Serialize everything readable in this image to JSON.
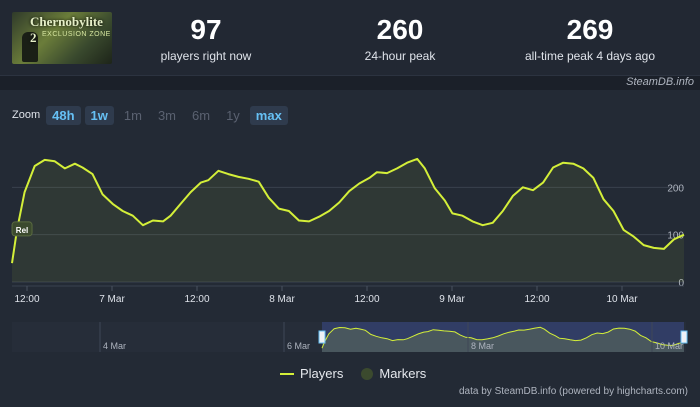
{
  "header": {
    "thumbnail_text": "Chernobylite 2",
    "thumbnail_sub": "EXCLUSION ZONE",
    "stats": [
      {
        "value": "97",
        "label": "players right now"
      },
      {
        "value": "260",
        "label": "24-hour peak"
      },
      {
        "value": "269",
        "label": "all-time peak 4 days ago"
      }
    ],
    "credit": "SteamDB.info"
  },
  "zoom": {
    "label": "Zoom",
    "buttons": [
      {
        "label": "48h",
        "state": "active"
      },
      {
        "label": "1w",
        "state": "active"
      },
      {
        "label": "1m",
        "state": "disabled"
      },
      {
        "label": "3m",
        "state": "disabled"
      },
      {
        "label": "6m",
        "state": "disabled"
      },
      {
        "label": "1y",
        "state": "disabled"
      },
      {
        "label": "max",
        "state": "active"
      }
    ]
  },
  "chart_data": {
    "type": "area",
    "series": [
      {
        "name": "Players",
        "color": "#d4ef39"
      }
    ],
    "ylim": [
      0,
      300
    ],
    "yticks": [
      0,
      100,
      200
    ],
    "xticks": [
      "12:00",
      "7 Mar",
      "12:00",
      "8 Mar",
      "12:00",
      "9 Mar",
      "12:00",
      "10 Mar"
    ],
    "points": [
      [
        0,
        40
      ],
      [
        2,
        110
      ],
      [
        5,
        190
      ],
      [
        9,
        245
      ],
      [
        13,
        258
      ],
      [
        17,
        255
      ],
      [
        21,
        240
      ],
      [
        25,
        250
      ],
      [
        28,
        242
      ],
      [
        32,
        228
      ],
      [
        36,
        185
      ],
      [
        40,
        165
      ],
      [
        44,
        150
      ],
      [
        48,
        140
      ],
      [
        52,
        120
      ],
      [
        56,
        130
      ],
      [
        60,
        128
      ],
      [
        63,
        140
      ],
      [
        67,
        165
      ],
      [
        71,
        190
      ],
      [
        75,
        210
      ],
      [
        78,
        215
      ],
      [
        82,
        235
      ],
      [
        86,
        228
      ],
      [
        90,
        222
      ],
      [
        94,
        218
      ],
      [
        98,
        212
      ],
      [
        102,
        178
      ],
      [
        106,
        155
      ],
      [
        110,
        150
      ],
      [
        114,
        130
      ],
      [
        118,
        128
      ],
      [
        122,
        138
      ],
      [
        126,
        150
      ],
      [
        130,
        168
      ],
      [
        134,
        192
      ],
      [
        138,
        208
      ],
      [
        142,
        220
      ],
      [
        145,
        232
      ],
      [
        149,
        230
      ],
      [
        153,
        240
      ],
      [
        157,
        252
      ],
      [
        161,
        260
      ],
      [
        164,
        240
      ],
      [
        168,
        198
      ],
      [
        172,
        172
      ],
      [
        175,
        145
      ],
      [
        179,
        140
      ],
      [
        183,
        128
      ],
      [
        187,
        120
      ],
      [
        191,
        125
      ],
      [
        195,
        150
      ],
      [
        199,
        182
      ],
      [
        203,
        200
      ],
      [
        207,
        194
      ],
      [
        211,
        210
      ],
      [
        215,
        242
      ],
      [
        219,
        252
      ],
      [
        223,
        250
      ],
      [
        227,
        240
      ],
      [
        231,
        220
      ],
      [
        235,
        175
      ],
      [
        239,
        150
      ],
      [
        243,
        110
      ],
      [
        247,
        96
      ],
      [
        251,
        78
      ],
      [
        255,
        72
      ],
      [
        259,
        70
      ],
      [
        263,
        90
      ],
      [
        267,
        100
      ]
    ],
    "markers": [
      {
        "label": "Rel"
      }
    ],
    "navigator_labels": [
      "4 Mar",
      "6 Mar",
      "8 Mar",
      "10 Mar"
    ],
    "legend": [
      {
        "label": "Players"
      },
      {
        "label": "Markers"
      }
    ]
  },
  "footer": {
    "text": "data by SteamDB.info (powered by highcharts.com)"
  }
}
